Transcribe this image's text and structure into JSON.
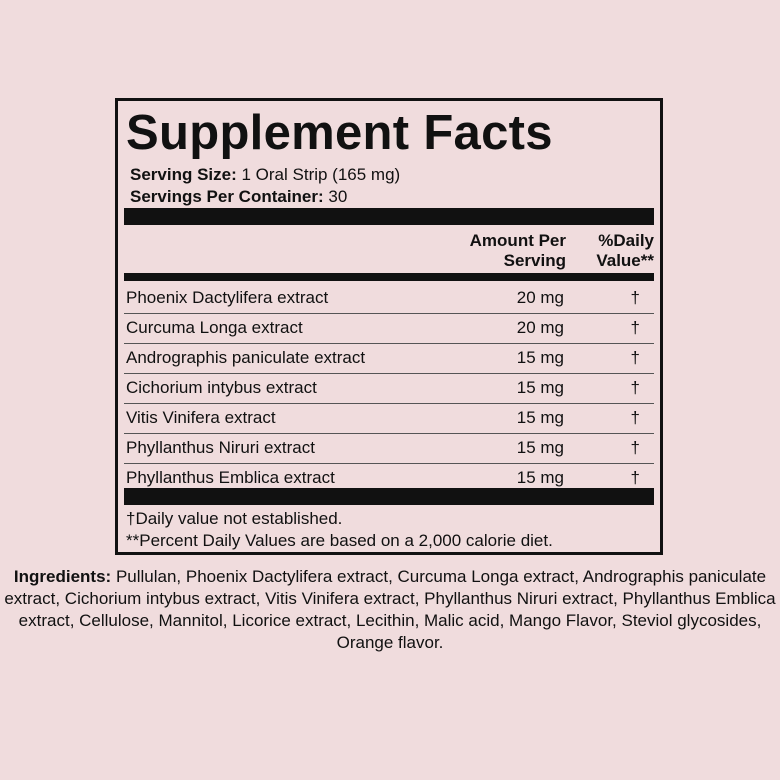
{
  "title": "Supplement Facts",
  "serving_size": {
    "label": "Serving Size:",
    "value": " 1 Oral Strip (165 mg)"
  },
  "servings_per_container": {
    "label": "Servings Per Container:",
    "value": " 30"
  },
  "header": {
    "amount_line1": "Amount Per",
    "amount_line2": "Serving",
    "dv_line1": "%Daily",
    "dv_line2": "Value**"
  },
  "rows": [
    {
      "name": "Phoenix Dactylifera extract",
      "amount": "20 mg",
      "dv": "†"
    },
    {
      "name": "Curcuma Longa extract",
      "amount": "20 mg",
      "dv": "†"
    },
    {
      "name": "Andrographis paniculate extract",
      "amount": "15 mg",
      "dv": "†"
    },
    {
      "name": "Cichorium intybus extract",
      "amount": "15 mg",
      "dv": "†"
    },
    {
      "name": "Vitis Vinifera  extract",
      "amount": "15 mg",
      "dv": "†"
    },
    {
      "name": "Phyllanthus Niruri extract",
      "amount": "15 mg",
      "dv": "†"
    },
    {
      "name": "Phyllanthus Emblica extract",
      "amount": "15 mg",
      "dv": "†"
    }
  ],
  "footnotes": [
    "†Daily value not established.",
    "**Percent Daily Values are based on a 2,000 calorie diet."
  ],
  "ingredients": {
    "label": "Ingredients:",
    "text": " Pullulan, Phoenix Dactylifera extract, Curcuma Longa extract, Andrographis paniculate extract, Cichorium intybus extract, Vitis Vinifera extract, Phyllanthus Niruri extract, Phyllanthus Emblica extract, Cellulose, Mannitol, Licorice extract, Lecithin, Malic acid, Mango Flavor, Steviol glycosides, Orange flavor."
  }
}
